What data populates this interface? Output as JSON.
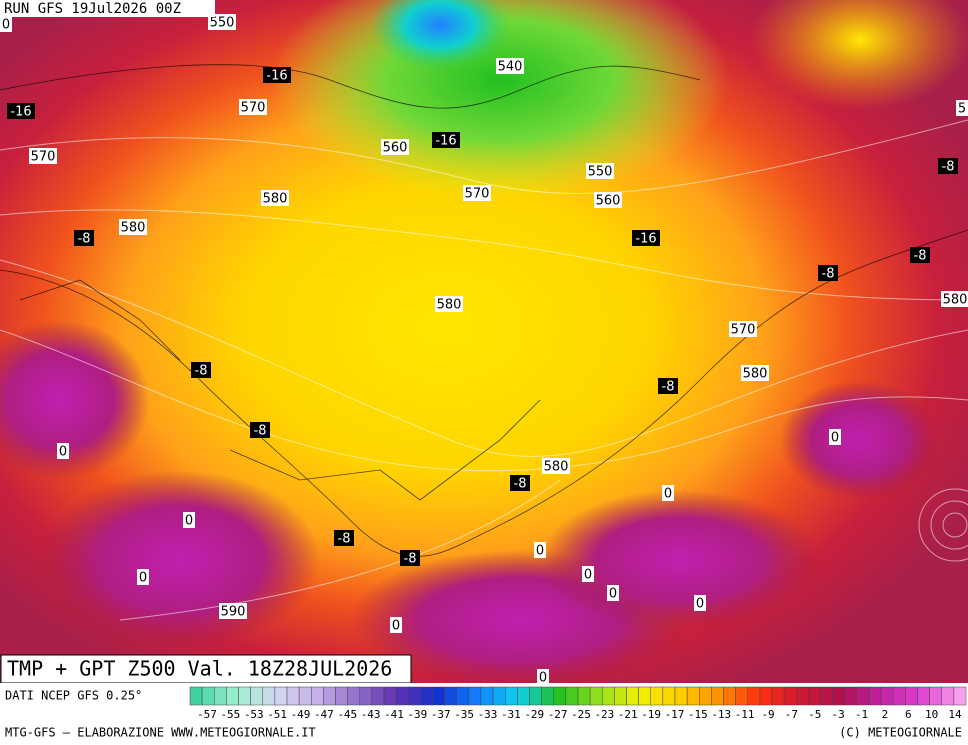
{
  "header": {
    "run": "RUN GFS 19Jul2026 00Z"
  },
  "map": {
    "geopotential_labels": [
      "0",
      "550",
      "540",
      "570",
      "570",
      "560",
      "580",
      "580",
      "570",
      "550",
      "560",
      "580",
      "570",
      "580",
      "580",
      "580",
      "590",
      "5"
    ],
    "temperature_labels": [
      "-16",
      "-16",
      "-16",
      "-16",
      "-8",
      "-8",
      "-8",
      "-8",
      "-8",
      "-8",
      "-8",
      "-8",
      "-8",
      "-8",
      "0",
      "0",
      "0",
      "0",
      "0",
      "0",
      "0",
      "0",
      "0",
      "0",
      "0"
    ]
  },
  "footer": {
    "caption": "TMP + GPT Z500 Val. 18Z28JUL2026",
    "source": "DATI NCEP GFS 0.25°",
    "scale": [
      -57,
      -55,
      -53,
      -51,
      -49,
      -47,
      -45,
      -43,
      -41,
      -39,
      -37,
      -35,
      -33,
      -31,
      -29,
      -27,
      -25,
      -23,
      -21,
      -19,
      -17,
      -15,
      -13,
      -11,
      -9,
      -7,
      -5,
      -3,
      -1,
      2,
      6,
      10,
      14
    ],
    "credit": "MTG-GFS – ELABORAZIONE WWW.METEOGIORNALE.IT",
    "copyright": "(C) METEOGIORNALE"
  }
}
